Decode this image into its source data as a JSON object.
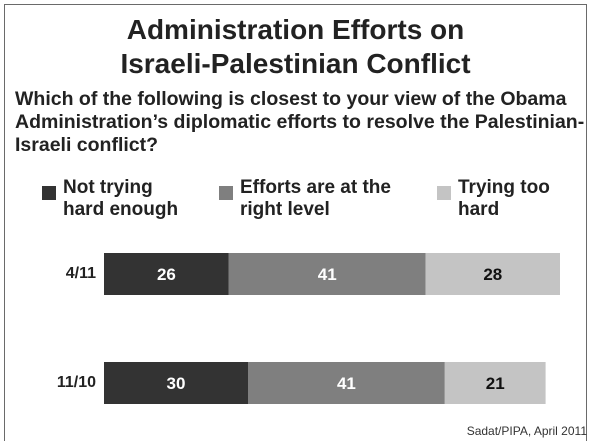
{
  "title_line1": "Administration Efforts on",
  "title_line2": "Israeli-Palestinian Conflict",
  "question": "Which of the following is closest to your view of the Obama Administration’s diplomatic efforts to resolve the Palestinian-Israeli conflict?",
  "source": "Sadat/PIPA, April 2011",
  "chart_data": {
    "type": "bar",
    "orientation": "horizontal",
    "stacked": true,
    "categories": [
      "4/11",
      "11/10"
    ],
    "series": [
      {
        "name": "Not trying\nhard enough",
        "values": [
          26,
          30
        ],
        "color": "#333333"
      },
      {
        "name": "Efforts are at the\nright level",
        "values": [
          41,
          41
        ],
        "color": "#7f7f7f"
      },
      {
        "name": "Trying too\nhard",
        "values": [
          28,
          21
        ],
        "color": "#c4c4c4"
      }
    ],
    "xlim": [
      0,
      100
    ],
    "grid": false,
    "legend_position": "top"
  }
}
